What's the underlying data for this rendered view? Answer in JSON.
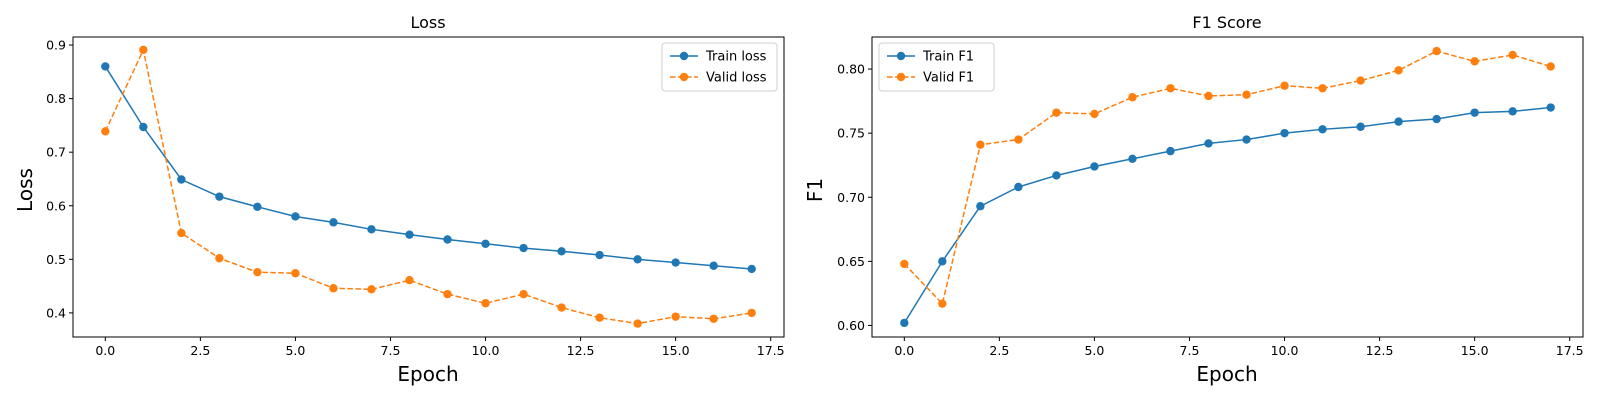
{
  "colors": {
    "train": "#1f77b4",
    "valid": "#ff7f0e"
  },
  "chart_data": [
    {
      "type": "line",
      "title": "Loss",
      "xlabel": "Epoch",
      "ylabel": "Loss",
      "xlim": [
        -0.85,
        17.85
      ],
      "ylim": [
        0.355,
        0.915
      ],
      "xticks": [
        "0.0",
        "2.5",
        "5.0",
        "7.5",
        "10.0",
        "12.5",
        "15.0",
        "17.5"
      ],
      "yticks": [
        "0.4",
        "0.5",
        "0.6",
        "0.7",
        "0.8",
        "0.9"
      ],
      "legend_position": "top-right",
      "x": [
        0,
        1,
        2,
        3,
        4,
        5,
        6,
        7,
        8,
        9,
        10,
        11,
        12,
        13,
        14,
        15,
        16,
        17
      ],
      "series": [
        {
          "name": "Train loss",
          "style": "solid",
          "color": "#1f77b4",
          "values": [
            0.86,
            0.747,
            0.649,
            0.617,
            0.598,
            0.58,
            0.569,
            0.556,
            0.546,
            0.537,
            0.529,
            0.521,
            0.515,
            0.508,
            0.5,
            0.494,
            0.488,
            0.482
          ]
        },
        {
          "name": "Valid loss",
          "style": "dashed",
          "color": "#ff7f0e",
          "values": [
            0.739,
            0.891,
            0.549,
            0.502,
            0.476,
            0.474,
            0.446,
            0.444,
            0.461,
            0.435,
            0.418,
            0.435,
            0.41,
            0.391,
            0.38,
            0.393,
            0.389,
            0.4
          ]
        }
      ]
    },
    {
      "type": "line",
      "title": "F1 Score",
      "xlabel": "Epoch",
      "ylabel": "F1",
      "xlim": [
        -0.85,
        17.85
      ],
      "ylim": [
        0.591,
        0.825
      ],
      "xticks": [
        "0.0",
        "2.5",
        "5.0",
        "7.5",
        "10.0",
        "12.5",
        "15.0",
        "17.5"
      ],
      "yticks": [
        "0.60",
        "0.65",
        "0.70",
        "0.75",
        "0.80"
      ],
      "legend_position": "top-left",
      "x": [
        0,
        1,
        2,
        3,
        4,
        5,
        6,
        7,
        8,
        9,
        10,
        11,
        12,
        13,
        14,
        15,
        16,
        17
      ],
      "series": [
        {
          "name": "Train F1",
          "style": "solid",
          "color": "#1f77b4",
          "values": [
            0.602,
            0.65,
            0.693,
            0.708,
            0.717,
            0.724,
            0.73,
            0.736,
            0.742,
            0.745,
            0.75,
            0.753,
            0.755,
            0.759,
            0.761,
            0.766,
            0.767,
            0.77
          ]
        },
        {
          "name": "Valid F1",
          "style": "dashed",
          "color": "#ff7f0e",
          "values": [
            0.648,
            0.617,
            0.741,
            0.745,
            0.766,
            0.765,
            0.778,
            0.785,
            0.779,
            0.78,
            0.787,
            0.785,
            0.791,
            0.799,
            0.814,
            0.806,
            0.811,
            0.802
          ]
        }
      ]
    }
  ]
}
